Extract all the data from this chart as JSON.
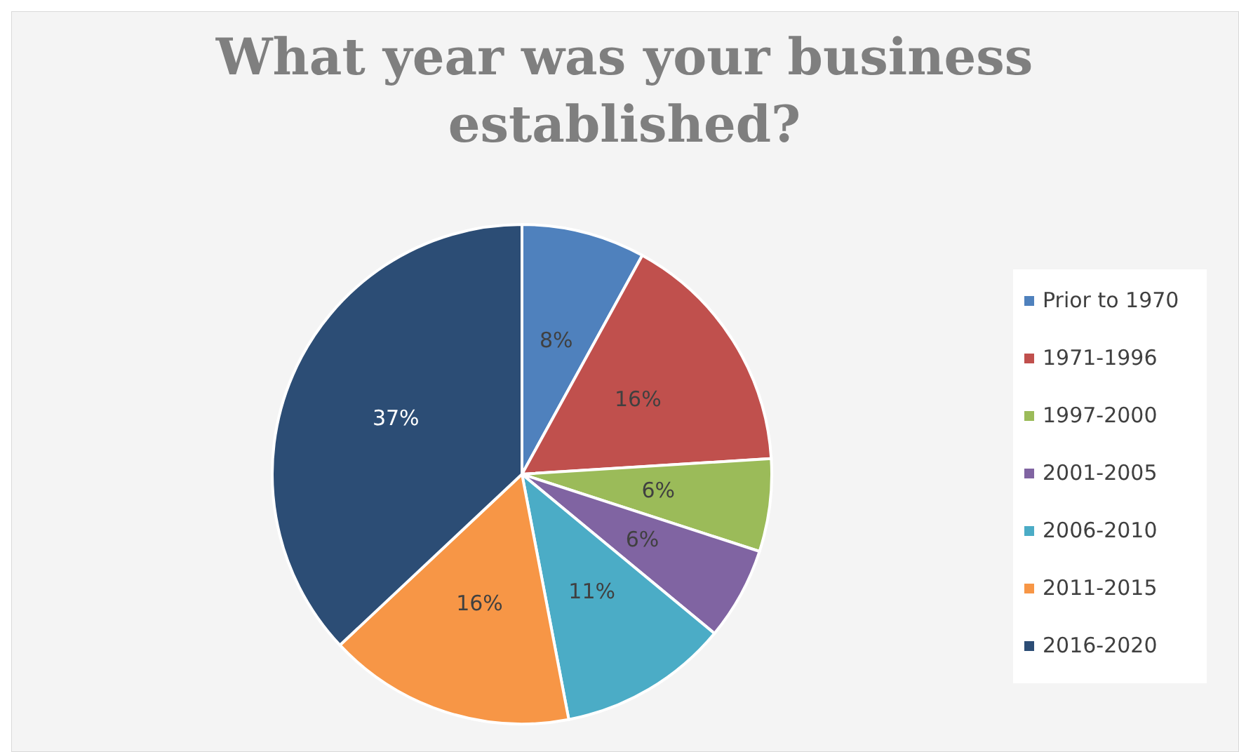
{
  "chart_data": {
    "type": "pie",
    "title": "What year was your business established?",
    "categories": [
      "Prior to 1970",
      "1971-1996",
      "1997-2000",
      "2001-2005",
      "2006-2010",
      "2011-2015",
      "2016-2020"
    ],
    "values": [
      8,
      16,
      6,
      6,
      11,
      16,
      37
    ],
    "colors": [
      "#4f81bd",
      "#c0504d",
      "#9bbb59",
      "#8064a2",
      "#4bacc6",
      "#f79646",
      "#2c4d75"
    ],
    "value_labels": [
      "8%",
      "16%",
      "6%",
      "6%",
      "11%",
      "16%",
      "37%"
    ],
    "legend": "right"
  }
}
